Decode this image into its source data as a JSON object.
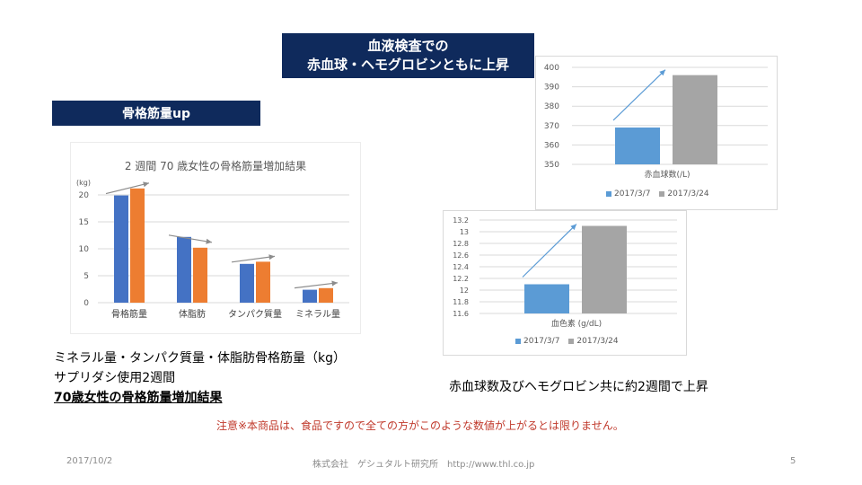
{
  "title_box": {
    "line1": "血液検査での",
    "line2": "赤血球・ヘモグロビンともに上昇"
  },
  "muscle_label": "骨格筋量up",
  "colors": {
    "navy": "#0f2a5c",
    "blue": "#4472c4",
    "orange": "#ed7d31",
    "light_blue": "#5b9bd5",
    "gray": "#a5a5a5",
    "red_text": "#c0392b"
  },
  "chart_data": [
    {
      "type": "bar",
      "title": "2 週間 70 歳女性の骨格筋量増加結果",
      "ylabel": "(kg)",
      "categories": [
        "骨格筋量",
        "体脂肪",
        "タンパク質量",
        "ミネラル量"
      ],
      "series": [
        {
          "values": [
            19.9,
            12.2,
            7.2,
            2.4
          ]
        },
        {
          "values": [
            21.2,
            10.2,
            7.6,
            2.7
          ]
        }
      ],
      "ylim": [
        0,
        20
      ],
      "yticks": [
        "0",
        "5",
        "10",
        "15",
        "20"
      ],
      "grid": true
    },
    {
      "type": "bar",
      "xlabel": "赤血球数(/L)",
      "series": [
        {
          "name": "2017/3/7",
          "values": [
            369
          ]
        },
        {
          "name": "2017/3/24",
          "values": [
            396
          ]
        }
      ],
      "ylim": [
        350,
        400
      ],
      "yticks": [
        "350",
        "360",
        "370",
        "380",
        "390",
        "400"
      ],
      "grid": true,
      "legend": "bottom"
    },
    {
      "type": "bar",
      "xlabel": "血色素 (g/dL)",
      "series": [
        {
          "name": "2017/3/7",
          "values": [
            12.1
          ]
        },
        {
          "name": "2017/3/24",
          "values": [
            13.1
          ]
        }
      ],
      "ylim": [
        11.6,
        13.2
      ],
      "yticks": [
        "11.6",
        "11.8",
        "12",
        "12.2",
        "12.4",
        "12.6",
        "12.8",
        "13",
        "13.2"
      ],
      "grid": true,
      "legend": "bottom"
    }
  ],
  "caption_left": {
    "line1": "ミネラル量・タンパク質量・体脂肪骨格筋量（kg）",
    "line2": "サプリダシ使用2週間",
    "line3": "70歳女性の骨格筋量増加結果"
  },
  "caption_right": "赤血球数及びヘモグロビン共に約2週間で上昇",
  "notice": "注意※本商品は、食品ですので全ての方がこのような数値が上がるとは限りません。",
  "footer": {
    "date": "2017/10/2",
    "company": "株式会社　ゲシュタルト研究所　http://www.thl.co.jp",
    "page": "5"
  }
}
